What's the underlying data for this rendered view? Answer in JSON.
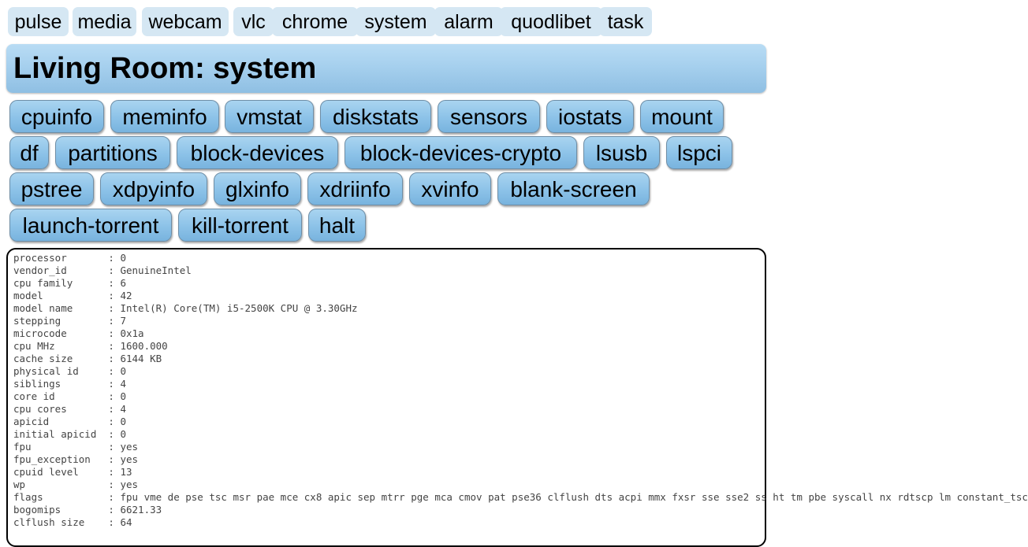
{
  "nav": {
    "tabs": [
      {
        "label": "pulse"
      },
      {
        "label": "media"
      },
      {
        "label": "webcam"
      },
      {
        "label": "vlc"
      },
      {
        "label": "chrome"
      },
      {
        "label": "system"
      },
      {
        "label": "alarm"
      },
      {
        "label": "quodlibet"
      },
      {
        "label": "task"
      }
    ]
  },
  "header": {
    "title": "Living Room: system"
  },
  "commands": [
    {
      "label": "cpuinfo"
    },
    {
      "label": "meminfo"
    },
    {
      "label": "vmstat"
    },
    {
      "label": "diskstats"
    },
    {
      "label": "sensors"
    },
    {
      "label": "iostats"
    },
    {
      "label": "mount"
    },
    {
      "label": "df"
    },
    {
      "label": "partitions"
    },
    {
      "label": "block-devices"
    },
    {
      "label": "block-devices-crypto"
    },
    {
      "label": "lsusb"
    },
    {
      "label": "lspci"
    },
    {
      "label": "pstree"
    },
    {
      "label": "xdpyinfo"
    },
    {
      "label": "glxinfo"
    },
    {
      "label": "xdriinfo"
    },
    {
      "label": "xvinfo"
    },
    {
      "label": "blank-screen"
    },
    {
      "label": "launch-torrent"
    },
    {
      "label": "kill-torrent"
    },
    {
      "label": "halt"
    }
  ],
  "output": {
    "text": "processor\t: 0\nvendor_id\t: GenuineIntel\ncpu family\t: 6\nmodel\t\t: 42\nmodel name\t: Intel(R) Core(TM) i5-2500K CPU @ 3.30GHz\nstepping\t: 7\nmicrocode\t: 0x1a\ncpu MHz\t\t: 1600.000\ncache size\t: 6144 KB\nphysical id\t: 0\nsiblings\t: 4\ncore id\t\t: 0\ncpu cores\t: 4\napicid\t\t: 0\ninitial apicid\t: 0\nfpu\t\t: yes\nfpu_exception\t: yes\ncpuid level\t: 13\nwp\t\t: yes\nflags\t\t: fpu vme de pse tsc msr pae mce cx8 apic sep mtrr pge mca cmov pat pse36 clflush dts acpi mmx fxsr sse sse2 ss ht tm pbe syscall nx rdtscp lm constant_tsc\nbogomips\t: 6621.33\nclflush size\t: 64"
  }
}
